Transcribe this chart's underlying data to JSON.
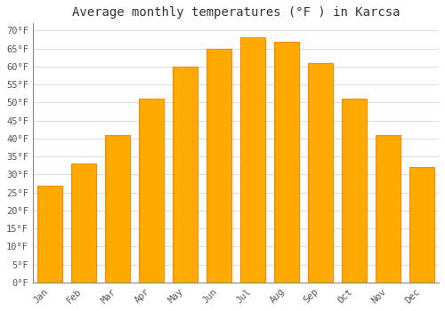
{
  "title": "Average monthly temperatures (°F ) in Karcsa",
  "months": [
    "Jan",
    "Feb",
    "Mar",
    "Apr",
    "May",
    "Jun",
    "Jul",
    "Aug",
    "Sep",
    "Oct",
    "Nov",
    "Dec"
  ],
  "values": [
    27,
    33,
    41,
    51,
    60,
    65,
    68,
    67,
    61,
    51,
    41,
    32
  ],
  "bar_color_face": "#FFAA00",
  "bar_color_edge": "#FF8800",
  "ylim": [
    0,
    72
  ],
  "yticks": [
    0,
    5,
    10,
    15,
    20,
    25,
    30,
    35,
    40,
    45,
    50,
    55,
    60,
    65,
    70
  ],
  "ytick_labels": [
    "0°F",
    "5°F",
    "10°F",
    "15°F",
    "20°F",
    "25°F",
    "30°F",
    "35°F",
    "40°F",
    "45°F",
    "50°F",
    "55°F",
    "60°F",
    "65°F",
    "70°F"
  ],
  "bg_color": "#FFFFFF",
  "grid_color": "#DDDDDD",
  "title_fontsize": 10,
  "tick_fontsize": 7.5,
  "font_family": "monospace"
}
